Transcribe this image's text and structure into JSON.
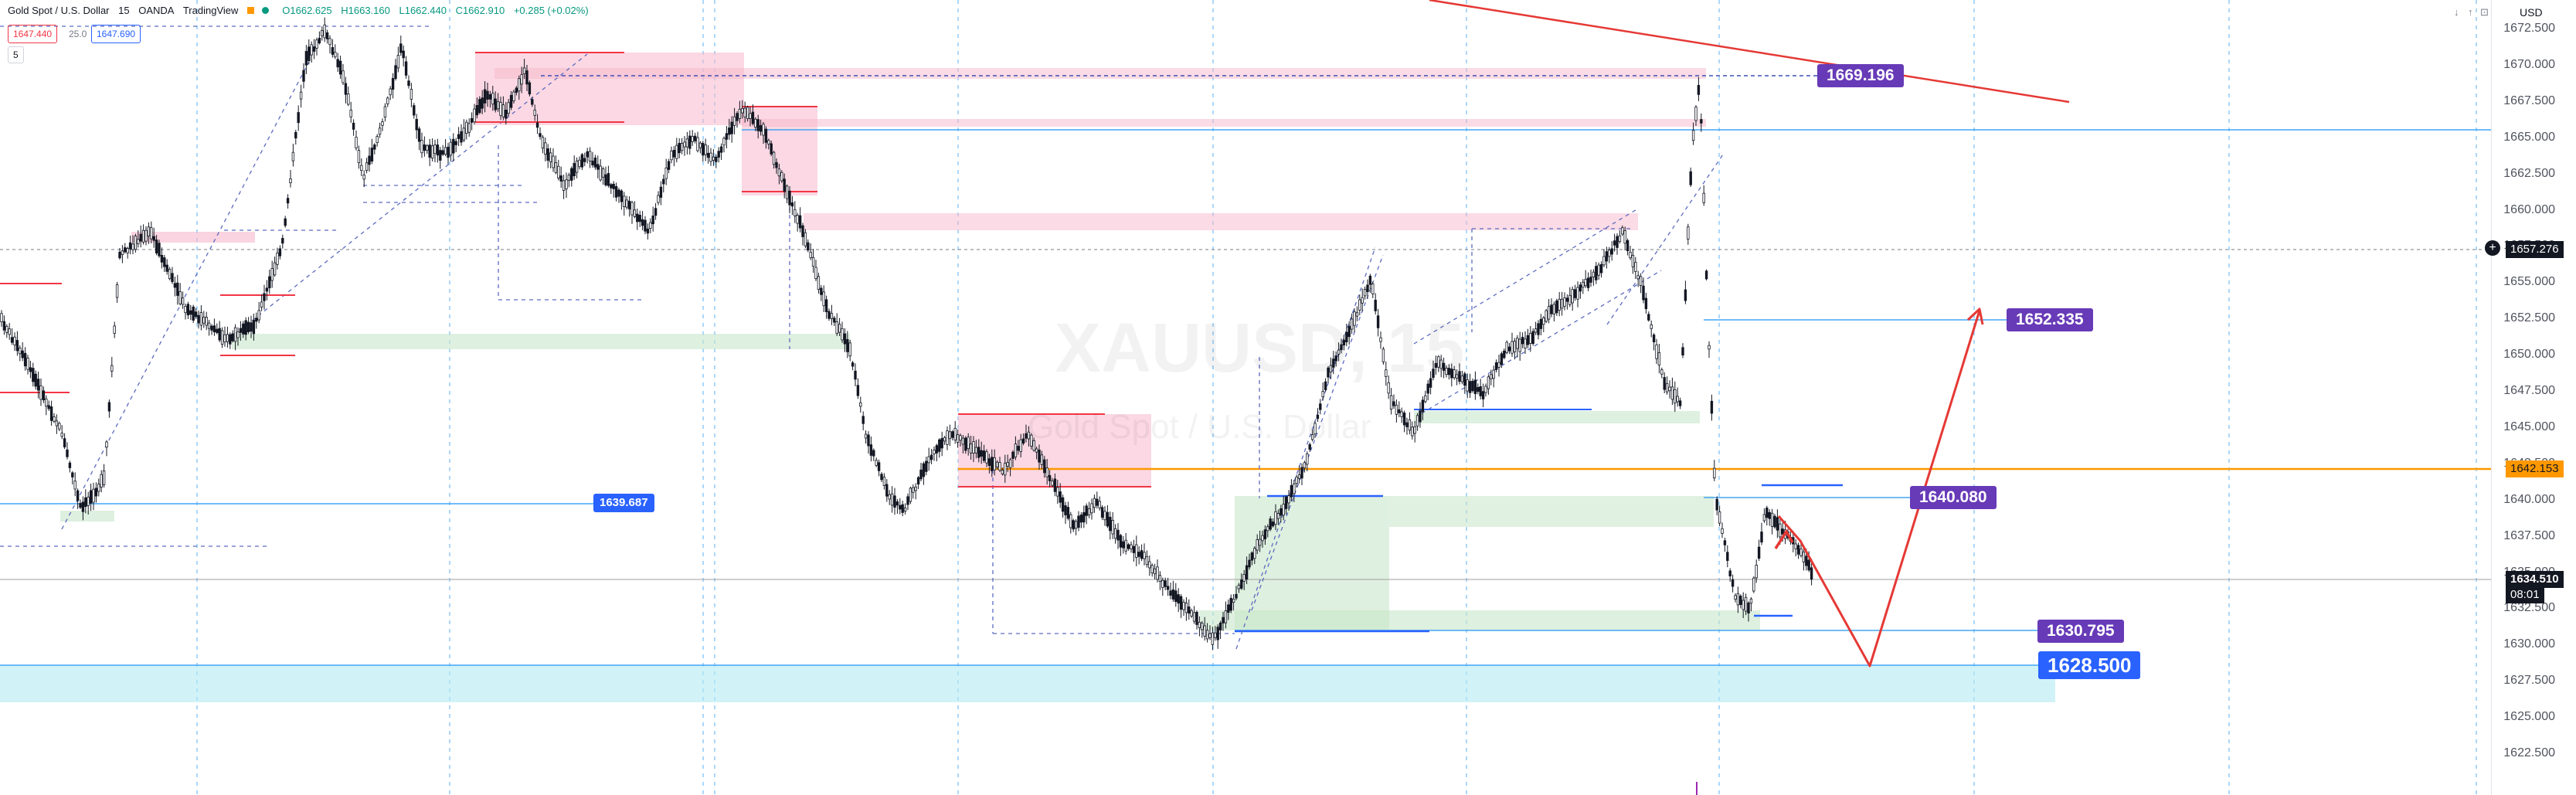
{
  "symbol": {
    "name": "Gold Spot / U.S. Dollar",
    "interval": "15",
    "broker": "OANDA",
    "platform": "TradingView",
    "watermark": "XAUUSD, 15",
    "watermark_sub": "Gold Spot / U.S. Dollar"
  },
  "ohlc": {
    "open": "O1662.625",
    "high": "H1663.160",
    "low": "L1662.440",
    "close": "C1662.910",
    "change": "+0.285 (+0.02%)"
  },
  "bid_ask": {
    "sell": "1647.440",
    "spread": "25.0",
    "buy": "1647.690"
  },
  "interval_box": "5",
  "currency": "USD",
  "top_buttons": [
    "↓",
    "↑",
    "⊡",
    "×"
  ],
  "axis": {
    "ticks": [
      "1672.500",
      "1670.000",
      "1667.500",
      "1665.000",
      "1662.500",
      "1660.000",
      "1657.500",
      "1655.000",
      "1652.500",
      "1650.000",
      "1647.500",
      "1645.000",
      "1642.500",
      "1640.000",
      "1637.500",
      "1635.000",
      "1632.500",
      "1630.000",
      "1627.500",
      "1625.000",
      "1622.500"
    ],
    "current_price": "1634.510",
    "countdown": "08:01",
    "crosshair_price": "1657.276",
    "orange_line_price": "1642.153"
  },
  "labels": {
    "resistance": "1669.196",
    "target_up": "1652.335",
    "pivot": "1640.080",
    "left_level": "1639.687",
    "support": "1630.795",
    "target_down": "1628.500"
  },
  "colors": {
    "up_candle": "#089981",
    "down_candle": "#f23645",
    "supply_zone": "#f7b8cc",
    "demand_zone": "#c8e6c9",
    "target_zone": "#b2ebf2",
    "trend_red": "#e53935",
    "orange_line": "#ff9800",
    "label_purple": "#673ab7",
    "label_blue": "#2962ff"
  }
}
